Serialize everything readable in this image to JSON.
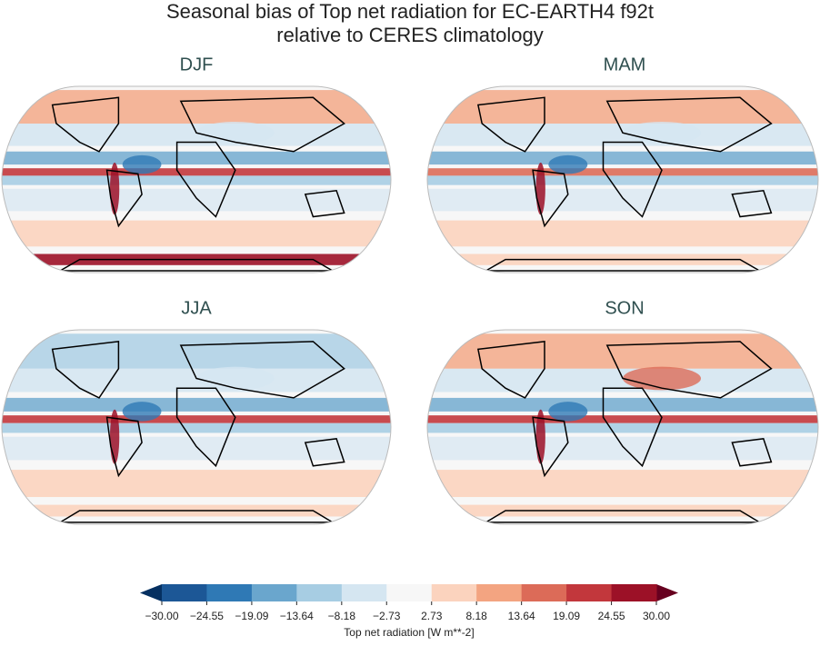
{
  "figure": {
    "title_lines": [
      "Seasonal bias of Top net radiation for EC-EARTH4 f92t",
      "relative to CERES climatology"
    ],
    "panels": [
      {
        "label": "DJF"
      },
      {
        "label": "MAM"
      },
      {
        "label": "JJA"
      },
      {
        "label": "SON"
      }
    ],
    "colorbar": {
      "label": "Top net radiation [W m**-2]",
      "lim": [
        -30,
        30
      ],
      "ticks": [
        {
          "value": -30,
          "label": "−30.00"
        },
        {
          "value": -24.55,
          "label": "−24.55"
        },
        {
          "value": -19.09,
          "label": "−19.09"
        },
        {
          "value": -13.64,
          "label": "−13.64"
        },
        {
          "value": -8.18,
          "label": "−8.18"
        },
        {
          "value": -2.73,
          "label": "−2.73"
        },
        2.73,
        8.18,
        13.64,
        19.09,
        24.55,
        {
          "value": 30,
          "label": "30.00"
        }
      ],
      "colors": [
        "#1c5796",
        "#2f79b5",
        "#6aa6cd",
        "#a7cde3",
        "#d5e6f1",
        "#f7f7f7",
        "#fbd3be",
        "#f3a481",
        "#dc6b58",
        "#c2373c",
        "#9c1127"
      ],
      "under_color": "#053061",
      "over_color": "#67001f"
    }
  }
}
